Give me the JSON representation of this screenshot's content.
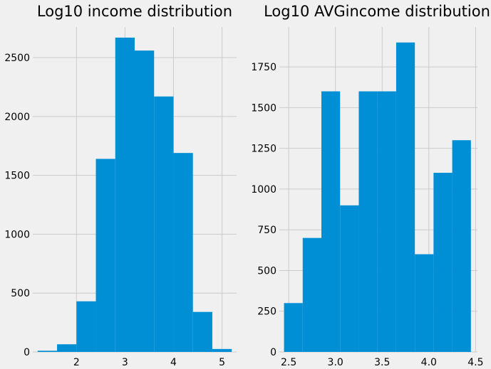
{
  "style": {
    "background": "#f0f0f0",
    "bar_color": "#008fd5",
    "grid_color": "#cbcbcb"
  },
  "chart_data": [
    {
      "type": "bar",
      "title": "Log10 income distribution",
      "xlabel": "",
      "ylabel": "",
      "grid": true,
      "xlim": [
        1.1,
        5.3
      ],
      "ylim": [
        0,
        2760
      ],
      "xticks": [
        2,
        3,
        4,
        5
      ],
      "yticks": [
        0,
        500,
        1000,
        1500,
        2000,
        2500
      ],
      "bins": [
        {
          "x0": 1.2,
          "x1": 1.6,
          "value": 10
        },
        {
          "x0": 1.6,
          "x1": 2.0,
          "value": 65
        },
        {
          "x0": 2.0,
          "x1": 2.4,
          "value": 430
        },
        {
          "x0": 2.4,
          "x1": 2.8,
          "value": 1640
        },
        {
          "x0": 2.8,
          "x1": 3.2,
          "value": 2670
        },
        {
          "x0": 3.2,
          "x1": 3.6,
          "value": 2560
        },
        {
          "x0": 3.6,
          "x1": 4.0,
          "value": 2170
        },
        {
          "x0": 4.0,
          "x1": 4.4,
          "value": 1690
        },
        {
          "x0": 4.4,
          "x1": 4.8,
          "value": 340
        },
        {
          "x0": 4.8,
          "x1": 5.2,
          "value": 25
        }
      ]
    },
    {
      "type": "bar",
      "title": "Log10 AVGincome distribution",
      "xlabel": "",
      "ylabel": "",
      "grid": true,
      "xlim": [
        2.4,
        4.52
      ],
      "ylim": [
        0,
        1995
      ],
      "xticks": [
        2.5,
        3.0,
        3.5,
        4.0,
        4.5
      ],
      "xtick_labels": [
        "2.5",
        "3.0",
        "3.5",
        "4.0",
        "4.5"
      ],
      "yticks": [
        0,
        250,
        500,
        750,
        1000,
        1250,
        1500,
        1750
      ],
      "bins": [
        {
          "x0": 2.45,
          "x1": 2.65,
          "value": 300
        },
        {
          "x0": 2.65,
          "x1": 2.85,
          "value": 700
        },
        {
          "x0": 2.85,
          "x1": 3.05,
          "value": 1600
        },
        {
          "x0": 3.05,
          "x1": 3.25,
          "value": 900
        },
        {
          "x0": 3.25,
          "x1": 3.45,
          "value": 1600
        },
        {
          "x0": 3.45,
          "x1": 3.65,
          "value": 1600
        },
        {
          "x0": 3.65,
          "x1": 3.85,
          "value": 1900
        },
        {
          "x0": 3.85,
          "x1": 4.05,
          "value": 600
        },
        {
          "x0": 4.05,
          "x1": 4.25,
          "value": 1100
        },
        {
          "x0": 4.25,
          "x1": 4.45,
          "value": 1300
        }
      ]
    }
  ]
}
